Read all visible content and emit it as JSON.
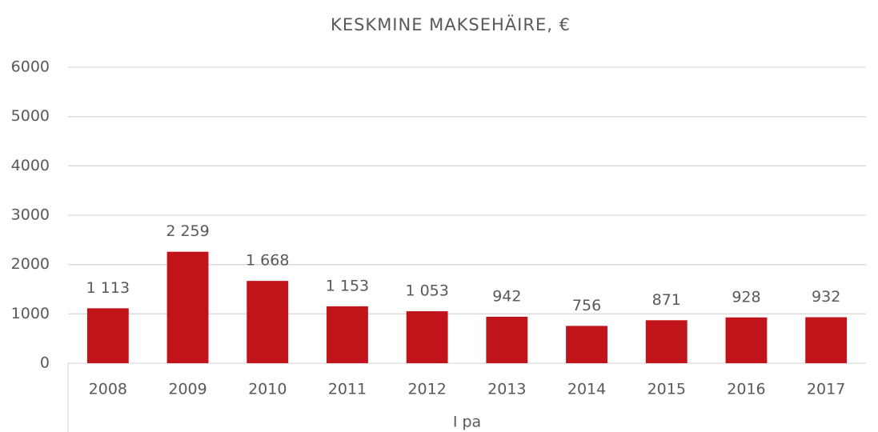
{
  "chart_data": {
    "type": "bar",
    "title": "KESKMINE MAKSEHÄIRE, €",
    "categories": [
      "2008",
      "2009",
      "2010",
      "2011",
      "2012",
      "2013",
      "2014",
      "2015",
      "2016",
      "2017"
    ],
    "values": [
      1113,
      2259,
      1668,
      1153,
      1053,
      942,
      756,
      871,
      928,
      932
    ],
    "value_labels": [
      "1 113",
      "2 259",
      "1 668",
      "1 153",
      "1 053",
      "942",
      "756",
      "871",
      "928",
      "932"
    ],
    "color": "#c0141a",
    "xlabel": "I pa",
    "ylim": [
      0,
      6000
    ],
    "yticks": [
      0,
      1000,
      2000,
      3000,
      4000,
      5000,
      6000
    ],
    "grid": true
  }
}
